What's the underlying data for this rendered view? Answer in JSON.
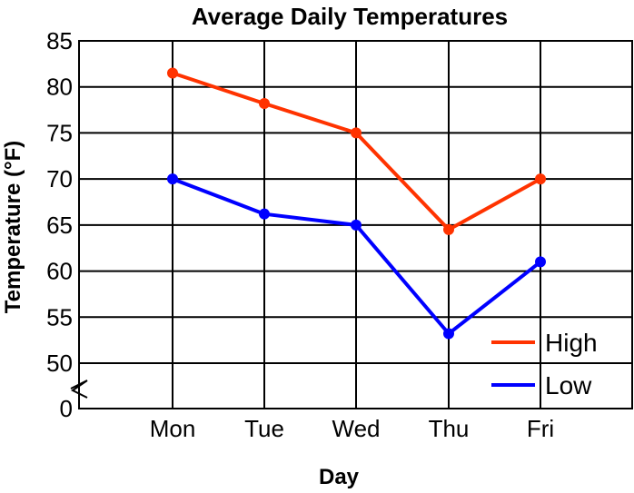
{
  "chart_data": {
    "type": "line",
    "title": "Average Daily Temperatures",
    "xlabel": "Day",
    "ylabel": "Temperature (°F)",
    "categories": [
      "Mon",
      "Tue",
      "Wed",
      "Thu",
      "Fri"
    ],
    "yticks": [
      "85",
      "80",
      "75",
      "70",
      "65",
      "60",
      "55",
      "50",
      "0"
    ],
    "ylim": [
      50,
      85
    ],
    "axis_break": true,
    "grid": true,
    "legend_position": "bottom-right",
    "series": [
      {
        "name": "High",
        "color": "#ff3300",
        "values": [
          81.5,
          78.2,
          75,
          64.5,
          70
        ]
      },
      {
        "name": "Low",
        "color": "#0000ff",
        "values": [
          70,
          66.2,
          65,
          53.2,
          61
        ]
      }
    ]
  }
}
